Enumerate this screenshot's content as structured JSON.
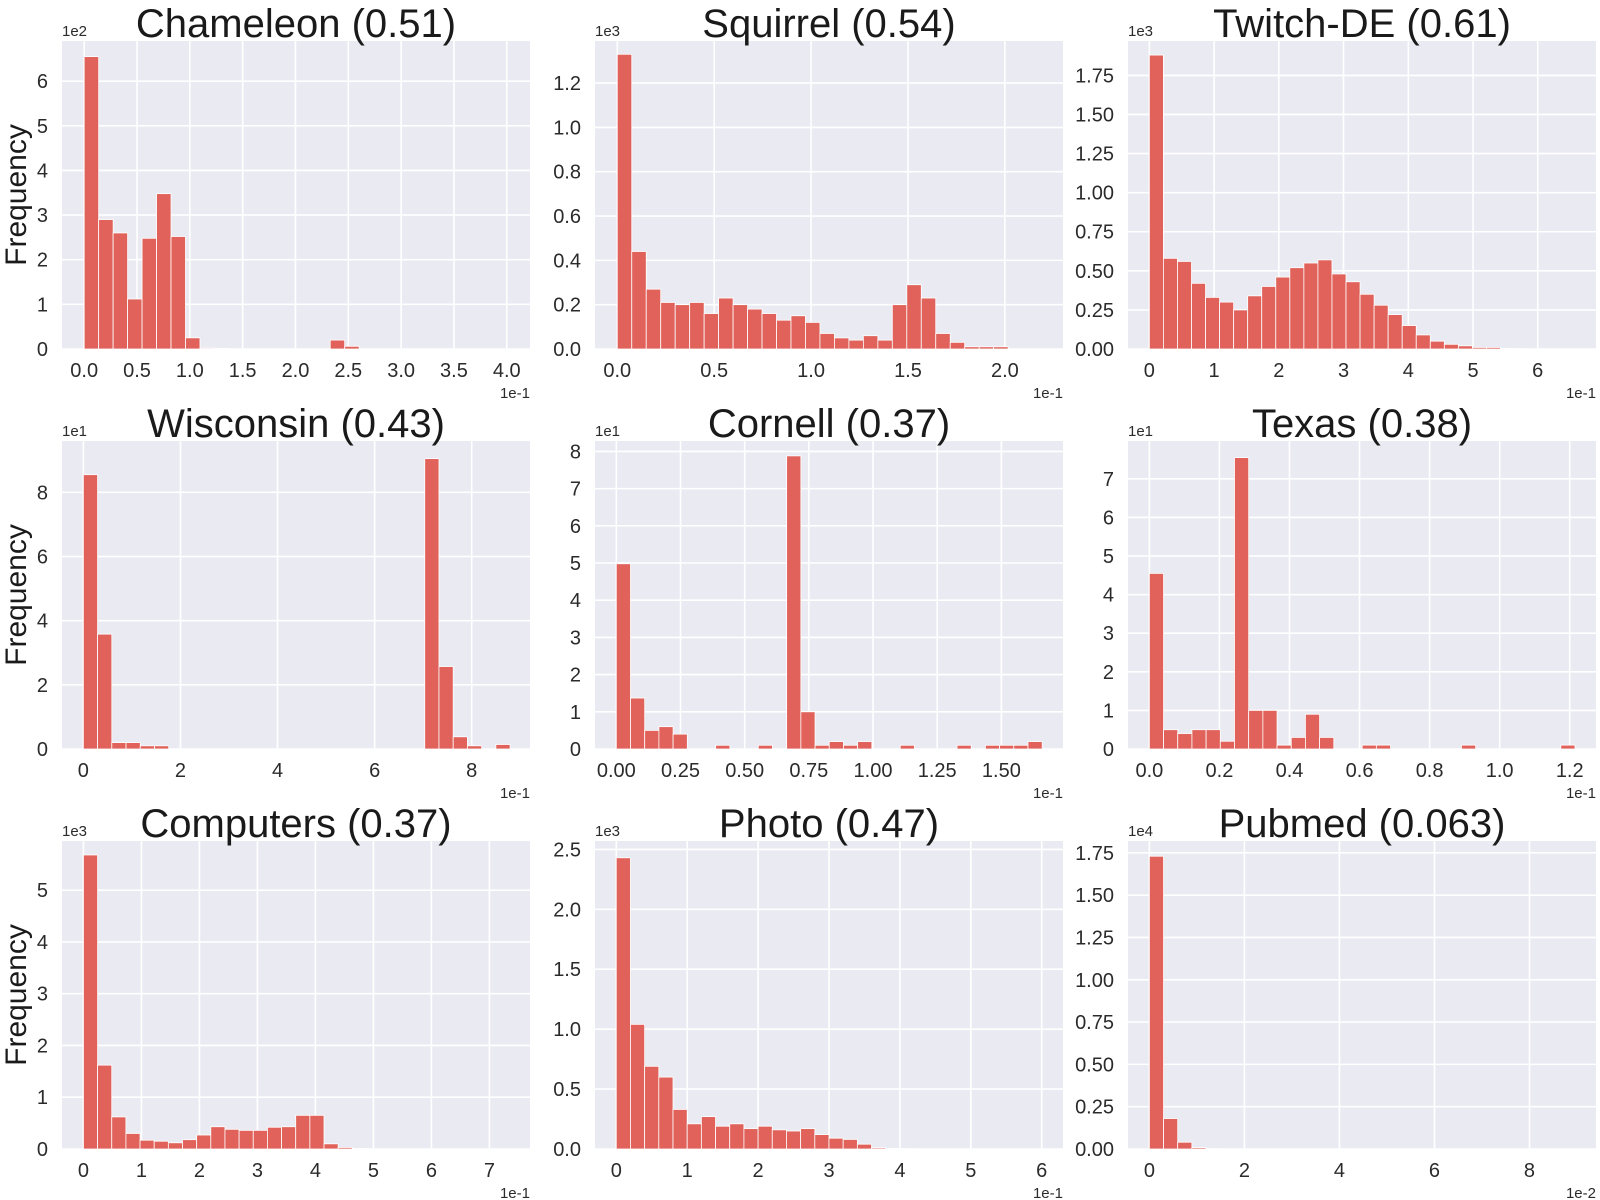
{
  "figure": {
    "bar_color": "#e0625a",
    "background_color": "#eaeaf2",
    "grid": true
  },
  "chart_data": [
    {
      "type": "bar",
      "title": "Chameleon (0.51)",
      "ylabel": "Frequency",
      "x_multiplier": "1e-1",
      "y_multiplier": "1e2",
      "x_ticks": [
        "0.0",
        "0.5",
        "1.0",
        "1.5",
        "2.0",
        "2.5",
        "3.0",
        "3.5",
        "4.0"
      ],
      "x_tick_values": [
        0,
        0.5,
        1.0,
        1.5,
        2.0,
        2.5,
        3.0,
        3.5,
        4.0
      ],
      "y_ticks": [
        "0",
        "1",
        "2",
        "3",
        "4",
        "5",
        "6"
      ],
      "y_tick_values": [
        0,
        1,
        2,
        3,
        4,
        5,
        6
      ],
      "xlim": [
        -0.21,
        4.22
      ],
      "ylim": [
        0,
        6.9
      ],
      "bin_start": 0.0,
      "bin_width": 0.137,
      "values": [
        6.55,
        2.9,
        2.6,
        1.12,
        2.48,
        3.48,
        2.52,
        0.25,
        0.02,
        0.01,
        0,
        0,
        0,
        0,
        0,
        0,
        0,
        0.2,
        0.06,
        0,
        0,
        0,
        0,
        0,
        0,
        0,
        0,
        0,
        0,
        0
      ]
    },
    {
      "type": "bar",
      "title": "Squirrel (0.54)",
      "ylabel": "",
      "x_multiplier": "1e-1",
      "y_multiplier": "1e3",
      "x_ticks": [
        "0.0",
        "0.5",
        "1.0",
        "1.5",
        "2.0"
      ],
      "x_tick_values": [
        0,
        0.5,
        1.0,
        1.5,
        2.0
      ],
      "y_ticks": [
        "0.0",
        "0.2",
        "0.4",
        "0.6",
        "0.8",
        "1.0",
        "1.2"
      ],
      "y_tick_values": [
        0,
        0.2,
        0.4,
        0.6,
        0.8,
        1.0,
        1.2
      ],
      "xlim": [
        -0.115,
        2.3
      ],
      "ylim": [
        0,
        1.39
      ],
      "bin_start": 0.0,
      "bin_width": 0.0747,
      "values": [
        1.33,
        0.44,
        0.27,
        0.21,
        0.2,
        0.21,
        0.16,
        0.23,
        0.2,
        0.18,
        0.16,
        0.13,
        0.15,
        0.12,
        0.07,
        0.05,
        0.04,
        0.06,
        0.04,
        0.2,
        0.29,
        0.23,
        0.07,
        0.03,
        0.01,
        0.01,
        0.01,
        0,
        0,
        0
      ]
    },
    {
      "type": "bar",
      "title": "Twitch-DE (0.61)",
      "ylabel": "",
      "x_multiplier": "1e-1",
      "y_multiplier": "1e3",
      "x_ticks": [
        "0",
        "1",
        "2",
        "3",
        "4",
        "5",
        "6"
      ],
      "x_tick_values": [
        0,
        1,
        2,
        3,
        4,
        5,
        6
      ],
      "y_ticks": [
        "0.00",
        "0.25",
        "0.50",
        "0.75",
        "1.00",
        "1.25",
        "1.50",
        "1.75"
      ],
      "y_tick_values": [
        0,
        0.25,
        0.5,
        0.75,
        1.0,
        1.25,
        1.5,
        1.75
      ],
      "xlim": [
        -0.33,
        6.9
      ],
      "ylim": [
        0,
        1.97
      ],
      "bin_start": 0.0,
      "bin_width": 0.217,
      "values": [
        1.88,
        0.58,
        0.56,
        0.42,
        0.33,
        0.3,
        0.25,
        0.34,
        0.4,
        0.46,
        0.52,
        0.55,
        0.57,
        0.48,
        0.43,
        0.35,
        0.28,
        0.22,
        0.15,
        0.09,
        0.05,
        0.03,
        0.02,
        0.01,
        0.01,
        0.003,
        0.002,
        0.001,
        0,
        0
      ]
    },
    {
      "type": "bar",
      "title": "Wisconsin (0.43)",
      "ylabel": "Frequency",
      "x_multiplier": "1e-1",
      "y_multiplier": "1e1",
      "x_ticks": [
        "0",
        "2",
        "4",
        "6",
        "8"
      ],
      "x_tick_values": [
        0,
        2,
        4,
        6,
        8
      ],
      "y_ticks": [
        "0",
        "2",
        "4",
        "6",
        "8"
      ],
      "y_tick_values": [
        0,
        2,
        4,
        6,
        8
      ],
      "xlim": [
        -0.44,
        9.2
      ],
      "ylim": [
        0,
        9.6
      ],
      "bin_start": 0.0,
      "bin_width": 0.293,
      "values": [
        8.55,
        3.58,
        0.2,
        0.2,
        0.1,
        0.1,
        0,
        0,
        0,
        0,
        0,
        0,
        0,
        0,
        0,
        0,
        0,
        0,
        0,
        0,
        0,
        0,
        0,
        0,
        9.05,
        2.57,
        0.38,
        0.1,
        0,
        0.14
      ]
    },
    {
      "type": "bar",
      "title": "Cornell (0.37)",
      "ylabel": "",
      "x_multiplier": "1e-1",
      "y_multiplier": "1e1",
      "x_ticks": [
        "0.00",
        "0.25",
        "0.50",
        "0.75",
        "1.00",
        "1.25",
        "1.50"
      ],
      "x_tick_values": [
        0,
        0.25,
        0.5,
        0.75,
        1.0,
        1.25,
        1.5
      ],
      "y_ticks": [
        "0",
        "1",
        "2",
        "3",
        "4",
        "5",
        "6",
        "7",
        "8"
      ],
      "y_tick_values": [
        0,
        1,
        2,
        3,
        4,
        5,
        6,
        7,
        8
      ],
      "xlim": [
        -0.083,
        1.74
      ],
      "ylim": [
        0,
        8.28
      ],
      "bin_start": 0.0,
      "bin_width": 0.0553,
      "values": [
        4.98,
        1.37,
        0.5,
        0.6,
        0.4,
        0,
        0,
        0.1,
        0,
        0,
        0.1,
        0,
        7.88,
        1.0,
        0.1,
        0.2,
        0.1,
        0.2,
        0,
        0,
        0.1,
        0,
        0,
        0,
        0.1,
        0,
        0.1,
        0.1,
        0.1,
        0.2
      ]
    },
    {
      "type": "bar",
      "title": "Texas (0.38)",
      "ylabel": "",
      "x_multiplier": "1e-1",
      "y_multiplier": "1e1",
      "x_ticks": [
        "0.0",
        "0.2",
        "0.4",
        "0.6",
        "0.8",
        "1.0",
        "1.2"
      ],
      "x_tick_values": [
        0,
        0.2,
        0.4,
        0.6,
        0.8,
        1.0,
        1.2
      ],
      "y_ticks": [
        "0",
        "1",
        "2",
        "3",
        "4",
        "5",
        "6",
        "7"
      ],
      "y_tick_values": [
        0,
        1,
        2,
        3,
        4,
        5,
        6,
        7
      ],
      "xlim": [
        -0.061,
        1.275
      ],
      "ylim": [
        0,
        7.98
      ],
      "bin_start": 0.0,
      "bin_width": 0.0405,
      "values": [
        4.55,
        0.5,
        0.4,
        0.5,
        0.5,
        0.2,
        7.55,
        1.0,
        1.0,
        0.1,
        0.3,
        0.9,
        0.3,
        0,
        0,
        0.1,
        0.1,
        0,
        0,
        0,
        0,
        0,
        0.1,
        0,
        0,
        0,
        0,
        0,
        0,
        0.1
      ]
    },
    {
      "type": "bar",
      "title": "Computers (0.37)",
      "ylabel": "Frequency",
      "x_multiplier": "1e-1",
      "y_multiplier": "1e3",
      "x_ticks": [
        "0",
        "1",
        "2",
        "3",
        "4",
        "5",
        "6",
        "7"
      ],
      "x_tick_values": [
        0,
        1,
        2,
        3,
        4,
        5,
        6,
        7
      ],
      "y_ticks": [
        "0",
        "1",
        "2",
        "3",
        "4",
        "5"
      ],
      "y_tick_values": [
        0,
        1,
        2,
        3,
        4,
        5
      ],
      "xlim": [
        -0.37,
        7.7
      ],
      "ylim": [
        0,
        5.95
      ],
      "bin_start": 0.0,
      "bin_width": 0.244,
      "values": [
        5.68,
        1.62,
        0.62,
        0.3,
        0.17,
        0.15,
        0.12,
        0.18,
        0.27,
        0.43,
        0.38,
        0.36,
        0.36,
        0.42,
        0.43,
        0.65,
        0.65,
        0.1,
        0.03,
        0.01,
        0,
        0,
        0,
        0,
        0,
        0,
        0,
        0,
        0,
        0
      ]
    },
    {
      "type": "bar",
      "title": "Photo (0.47)",
      "ylabel": "",
      "x_multiplier": "1e-1",
      "y_multiplier": "1e3",
      "x_ticks": [
        "0",
        "1",
        "2",
        "3",
        "4",
        "5",
        "6"
      ],
      "x_tick_values": [
        0,
        1,
        2,
        3,
        4,
        5,
        6
      ],
      "y_ticks": [
        "0.0",
        "0.5",
        "1.0",
        "1.5",
        "2.0",
        "2.5"
      ],
      "y_tick_values": [
        0,
        0.5,
        1.0,
        1.5,
        2.0,
        2.5
      ],
      "xlim": [
        -0.3,
        6.3
      ],
      "ylim": [
        0,
        2.57
      ],
      "bin_start": 0.0,
      "bin_width": 0.2,
      "values": [
        2.43,
        1.04,
        0.69,
        0.6,
        0.33,
        0.21,
        0.27,
        0.19,
        0.21,
        0.17,
        0.19,
        0.16,
        0.15,
        0.17,
        0.12,
        0.09,
        0.08,
        0.04,
        0.01,
        0.005,
        0.003,
        0,
        0,
        0,
        0,
        0,
        0,
        0,
        0,
        0
      ]
    },
    {
      "type": "bar",
      "title": "Pubmed (0.063)",
      "ylabel": "",
      "x_multiplier": "1e-2",
      "y_multiplier": "1e4",
      "x_ticks": [
        "0",
        "2",
        "4",
        "6",
        "8"
      ],
      "x_tick_values": [
        0,
        2,
        4,
        6,
        8
      ],
      "y_ticks": [
        "0.00",
        "0.25",
        "0.50",
        "0.75",
        "1.00",
        "1.25",
        "1.50",
        "1.75"
      ],
      "y_tick_values": [
        0,
        0.25,
        0.5,
        0.75,
        1.0,
        1.25,
        1.5,
        1.75
      ],
      "xlim": [
        -0.45,
        9.4
      ],
      "ylim": [
        0,
        1.82
      ],
      "bin_start": 0.0,
      "bin_width": 0.298,
      "values": [
        1.73,
        0.18,
        0.04,
        0.008,
        0.002,
        0.001,
        0,
        0,
        0,
        0,
        0,
        0,
        0,
        0,
        0,
        0,
        0,
        0,
        0,
        0,
        0,
        0,
        0,
        0,
        0,
        0,
        0,
        0,
        0,
        0
      ]
    }
  ]
}
